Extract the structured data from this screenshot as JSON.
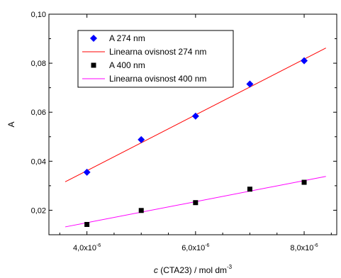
{
  "chart_data": {
    "type": "scatter",
    "title": "",
    "xlabel": {
      "italic": "c",
      "rest": " (CTA23) / mol dm",
      "sup": "-3"
    },
    "ylabel": "A",
    "xlim": [
      3.3e-06,
      8.6e-06
    ],
    "ylim": [
      0.01,
      0.1
    ],
    "x_ticks": [
      {
        "value": 4e-06,
        "mantissa": "4,0x10",
        "exp": "-6"
      },
      {
        "value": 6e-06,
        "mantissa": "6,0x10",
        "exp": "-6"
      },
      {
        "value": 8e-06,
        "mantissa": "8,0x10",
        "exp": "-6"
      }
    ],
    "y_ticks": [
      {
        "value": 0.02,
        "label": "0,02"
      },
      {
        "value": 0.04,
        "label": "0,04"
      },
      {
        "value": 0.06,
        "label": "0,06"
      },
      {
        "value": 0.08,
        "label": "0,08"
      },
      {
        "value": 0.1,
        "label": "0,10"
      }
    ],
    "grid": false,
    "legend_position": "top-left",
    "series": [
      {
        "name": "A 274 nm",
        "kind": "points",
        "marker": "diamond",
        "color": "#0000ff",
        "x": [
          4e-06,
          5e-06,
          6e-06,
          7e-06,
          8e-06
        ],
        "y": [
          0.0355,
          0.0488,
          0.0584,
          0.0715,
          0.081
        ]
      },
      {
        "name": "Linearna ovisnost 274 nm",
        "kind": "line",
        "color": "#ff0000",
        "x": [
          3.6e-06,
          8.4e-06
        ],
        "y": [
          0.0316,
          0.0862
        ]
      },
      {
        "name": "A 400 nm",
        "kind": "points",
        "marker": "square",
        "color": "#000000",
        "x": [
          4e-06,
          5e-06,
          6e-06,
          7e-06,
          8e-06
        ],
        "y": [
          0.0142,
          0.0199,
          0.0231,
          0.0286,
          0.0314
        ]
      },
      {
        "name": "Linearna ovisnost 400 nm",
        "kind": "line",
        "color": "#ff00ff",
        "x": [
          3.6e-06,
          8.4e-06
        ],
        "y": [
          0.0132,
          0.0338
        ]
      }
    ]
  }
}
